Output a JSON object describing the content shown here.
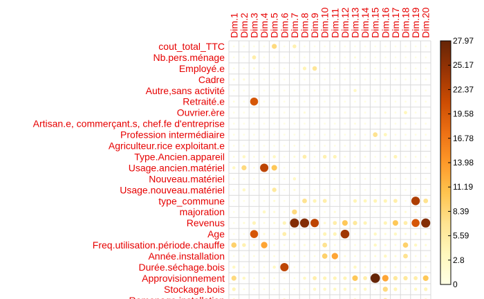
{
  "chart_data": {
    "type": "heatmap",
    "title": "",
    "columns": [
      "Dim.1",
      "Dim.2",
      "Dim.3",
      "Dim.4",
      "Dim.5",
      "Dim.6",
      "Dim.7",
      "Dim.8",
      "Dim.9",
      "Dim.10",
      "Dim.11",
      "Dim.12",
      "Dim.13",
      "Dim.14",
      "Dim.15",
      "Dim.16",
      "Dim.17",
      "Dim.18",
      "Dim.19",
      "Dim.20"
    ],
    "rows": [
      "cout_total_TTC",
      "Nb.pers.ménage",
      "Employé.e",
      "Cadre",
      "Autre,sans activité",
      "Retraité.e",
      "Ouvrier.ère",
      "Artisan.e, commerçant.s, chef.fe d'entreprise",
      "Profession intermédiaire",
      "Agriculteur.rice exploitant.e",
      "Type.Ancien.appareil",
      "Usage.ancien.matériel",
      "Nouveau.matériel",
      "Usage.nouveau.matériel",
      "type_commune",
      "majoration",
      "Revenus",
      "Age",
      "Freq.utilisation.période.chauffe",
      "Année.installation",
      "Durée.séchage.bois",
      "Approvisionnement",
      "Stockage.bois",
      "Ramonage.installation"
    ],
    "values": [
      [
        0.3,
        0.3,
        0.3,
        0.3,
        8.0,
        0.3,
        4.5,
        0.3,
        0.3,
        0.3,
        0.3,
        0.3,
        0.3,
        0.3,
        0.3,
        0.3,
        0.3,
        0.3,
        0.3,
        0.3
      ],
      [
        0.3,
        0.3,
        5.0,
        0.3,
        0.3,
        0.3,
        0.3,
        0.3,
        0.3,
        0.3,
        0.3,
        0.3,
        1.5,
        0.3,
        0.3,
        0.3,
        0.3,
        0.3,
        0.3,
        0.3
      ],
      [
        0.3,
        0.3,
        1.5,
        0.3,
        0.3,
        0.3,
        0.3,
        4.0,
        6.5,
        0.3,
        0.3,
        0.3,
        0.3,
        0.3,
        0.3,
        0.3,
        0.3,
        0.3,
        0.3,
        0.3
      ],
      [
        1.5,
        1.5,
        1.0,
        0.3,
        0.3,
        0.3,
        0.3,
        0.3,
        0.3,
        0.3,
        0.3,
        0.3,
        0.3,
        0.3,
        0.3,
        0.3,
        0.3,
        0.3,
        0.3,
        0.3
      ],
      [
        0.3,
        0.3,
        0.3,
        0.3,
        0.3,
        0.3,
        0.3,
        0.3,
        1.0,
        0.3,
        0.3,
        0.3,
        3.0,
        0.3,
        0.3,
        0.3,
        0.3,
        0.3,
        0.3,
        0.3
      ],
      [
        1.0,
        0.3,
        20.0,
        0.3,
        0.3,
        0.3,
        0.3,
        0.3,
        0.3,
        0.3,
        0.3,
        0.3,
        0.3,
        0.3,
        0.3,
        0.3,
        0.3,
        0.3,
        0.3,
        0.3
      ],
      [
        0.3,
        0.3,
        0.3,
        0.3,
        0.3,
        0.3,
        0.3,
        1.5,
        0.3,
        0.3,
        0.3,
        0.3,
        0.3,
        0.3,
        0.3,
        1.5,
        0.3,
        3.5,
        0.3,
        0.3
      ],
      [
        0.3,
        0.3,
        0.3,
        0.3,
        0.3,
        0.3,
        0.3,
        0.3,
        0.3,
        0.3,
        0.3,
        0.3,
        1.0,
        0.3,
        0.3,
        0.3,
        0.3,
        0.3,
        0.3,
        0.3
      ],
      [
        0.3,
        0.3,
        0.3,
        0.3,
        0.3,
        0.3,
        0.3,
        0.3,
        0.3,
        0.3,
        0.3,
        0.3,
        1.0,
        0.3,
        7.0,
        3.5,
        0.3,
        0.3,
        0.3,
        0.3
      ],
      [
        0.3,
        0.3,
        0.3,
        0.3,
        0.3,
        0.3,
        1.0,
        0.3,
        0.3,
        0.3,
        0.3,
        0.3,
        0.3,
        0.3,
        0.3,
        0.3,
        0.3,
        0.3,
        0.3,
        0.3
      ],
      [
        1.0,
        3.0,
        1.0,
        1.5,
        3.0,
        0.3,
        1.5,
        5.0,
        1.0,
        4.5,
        4.0,
        1.0,
        0.3,
        1.0,
        0.3,
        1.5,
        4.0,
        1.0,
        1.0,
        0.3
      ],
      [
        3.0,
        8.0,
        1.0,
        22.0,
        10.0,
        0.3,
        0.3,
        0.3,
        0.3,
        0.3,
        0.3,
        0.3,
        1.0,
        0.3,
        0.3,
        0.3,
        0.3,
        0.3,
        0.3,
        0.3
      ],
      [
        0.3,
        0.3,
        0.3,
        1.0,
        1.0,
        1.0,
        3.0,
        0.3,
        0.3,
        0.3,
        1.0,
        0.3,
        0.3,
        1.0,
        0.3,
        0.3,
        0.3,
        0.3,
        0.3,
        0.3
      ],
      [
        0.3,
        3.0,
        0.3,
        1.0,
        6.0,
        0.3,
        1.5,
        0.3,
        0.3,
        0.3,
        0.3,
        0.3,
        0.3,
        0.3,
        0.3,
        0.3,
        0.3,
        0.3,
        0.3,
        0.3
      ],
      [
        0.3,
        0.3,
        0.3,
        0.3,
        1.5,
        0.3,
        0.3,
        7.0,
        4.0,
        5.0,
        0.3,
        0.3,
        4.0,
        3.5,
        4.0,
        4.0,
        5.0,
        0.3,
        23.0,
        7.0
      ],
      [
        0.3,
        0.3,
        0.3,
        3.0,
        1.5,
        0.3,
        8.0,
        1.0,
        0.3,
        0.3,
        1.5,
        0.3,
        0.3,
        1.0,
        0.3,
        0.3,
        1.5,
        1.5,
        1.5,
        1.0
      ],
      [
        0.3,
        1.5,
        4.0,
        1.0,
        1.5,
        4.0,
        26.0,
        26.0,
        22.0,
        2.0,
        5.0,
        10.0,
        6.0,
        4.0,
        1.5,
        4.0,
        10.0,
        5.0,
        20.0,
        26.0
      ],
      [
        0.3,
        0.3,
        20.0,
        1.5,
        1.0,
        5.0,
        1.5,
        1.0,
        1.0,
        4.0,
        4.0,
        24.0,
        0.3,
        1.5,
        3.0,
        1.5,
        3.0,
        1.5,
        1.5,
        1.5
      ],
      [
        9.0,
        4.5,
        1.5,
        13.0,
        1.5,
        1.0,
        1.5,
        1.5,
        1.5,
        7.0,
        1.0,
        0.3,
        1.0,
        1.0,
        3.0,
        1.5,
        1.0,
        9.0,
        3.0,
        1.5
      ],
      [
        0.3,
        0.3,
        1.0,
        1.0,
        1.0,
        0.3,
        1.0,
        1.0,
        1.0,
        9.0,
        13.0,
        1.5,
        1.0,
        1.0,
        1.5,
        3.0,
        1.5,
        7.0,
        1.0,
        1.0
      ],
      [
        3.0,
        1.0,
        1.0,
        1.0,
        3.0,
        22.0,
        1.0,
        1.0,
        1.0,
        0.3,
        1.0,
        1.5,
        3.0,
        1.5,
        1.0,
        1.5,
        1.5,
        1.0,
        1.0,
        1.0
      ],
      [
        8.0,
        3.0,
        1.0,
        1.5,
        1.0,
        1.0,
        1.0,
        3.0,
        5.0,
        4.0,
        4.0,
        4.0,
        10.0,
        5.0,
        28.0,
        13.0,
        6.0,
        6.0,
        5.0,
        10.0
      ],
      [
        4.0,
        1.0,
        1.0,
        1.0,
        1.0,
        1.0,
        1.0,
        1.0,
        3.0,
        3.0,
        3.0,
        3.0,
        3.0,
        3.0,
        1.0,
        8.0,
        4.0,
        0.3,
        3.0,
        4.0
      ],
      [
        4.0,
        1.0,
        1.0,
        1.0,
        1.0,
        4.0,
        1.5,
        0.3,
        0.3,
        0.3,
        0.3,
        0.3,
        4.0,
        0.3,
        0.3,
        6.0,
        0.3,
        1.0,
        0.3,
        4.0
      ]
    ],
    "legend": {
      "min": 0,
      "max": 27.97,
      "ticks": [
        "27.97",
        "25.17",
        "22.37",
        "19.58",
        "16.78",
        "13.98",
        "11.19",
        "8.39",
        "5.59",
        "2.8",
        "0"
      ]
    },
    "colors": {
      "label": "#e60000",
      "grid": "#d9d9d9",
      "scale": [
        "#ffffe5",
        "#fff7bc",
        "#fee391",
        "#fec44f",
        "#fe9929",
        "#ec7014",
        "#cc4c02",
        "#993404",
        "#662506"
      ]
    }
  }
}
